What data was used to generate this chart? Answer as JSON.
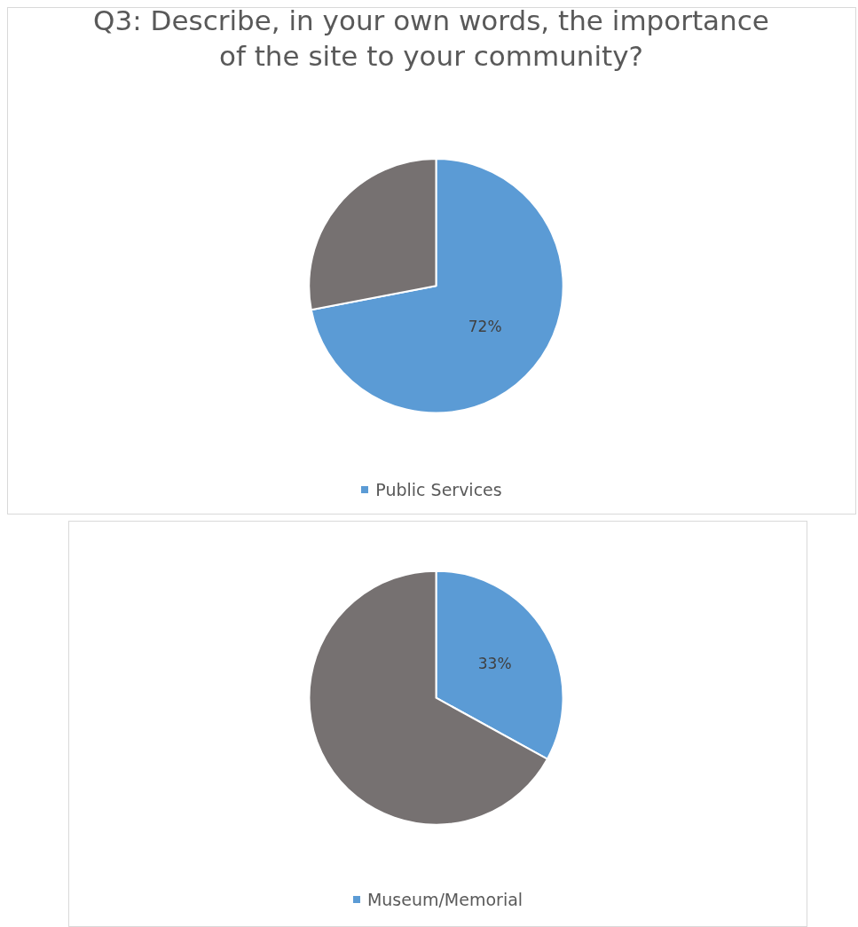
{
  "chart_data": [
    {
      "type": "pie",
      "title": "Q3: Describe, in your own words, the importance of the site to your community?",
      "categories": [
        "Public Services",
        null
      ],
      "values": [
        72,
        28
      ],
      "colors": [
        "#5b9bd5",
        "#767171"
      ],
      "value_labels": [
        "72%",
        null
      ],
      "legend": "bottom"
    },
    {
      "type": "pie",
      "categories": [
        "Museum/Memorial",
        null
      ],
      "values": [
        33,
        67
      ],
      "colors": [
        "#5b9bd5",
        "#767171"
      ],
      "value_labels": [
        "33%",
        null
      ],
      "legend": "bottom"
    }
  ]
}
